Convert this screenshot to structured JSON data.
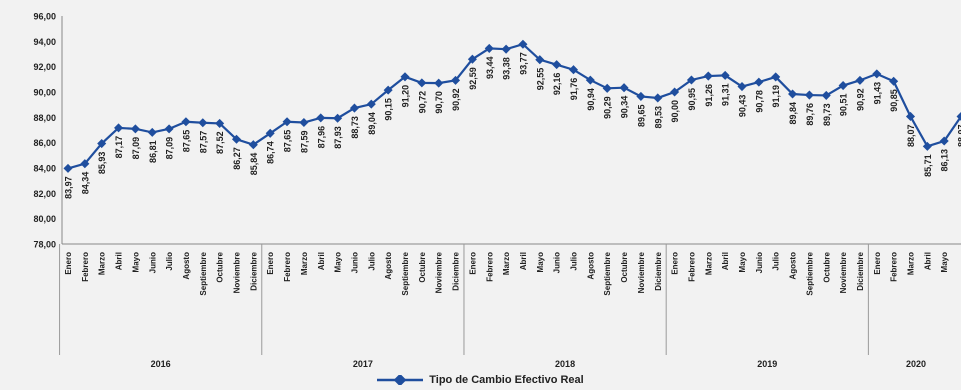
{
  "chart_data": {
    "type": "line",
    "title": "",
    "xlabel": "",
    "ylabel": "",
    "ylim": [
      78,
      96
    ],
    "yticks": [
      "78,00",
      "80,00",
      "82,00",
      "84,00",
      "86,00",
      "88,00",
      "90,00",
      "92,00",
      "94,00",
      "96,00"
    ],
    "grid": false,
    "legend_position": "bottom",
    "years": [
      {
        "label": "2016",
        "months": 12
      },
      {
        "label": "2017",
        "months": 12
      },
      {
        "label": "2018",
        "months": 12
      },
      {
        "label": "2019",
        "months": 12
      },
      {
        "label": "2020",
        "months": 5
      }
    ],
    "months": [
      "Enero",
      "Febrero",
      "Marzo",
      "Abril",
      "Mayo",
      "Junio",
      "Julio",
      "Agosto",
      "Septiembre",
      "Octubre",
      "Noviembre",
      "Diciembre"
    ],
    "series": [
      {
        "name": "Tipo de Cambio Efectivo Real",
        "color": "#1f4e9e",
        "values": [
          83.97,
          84.34,
          85.93,
          87.17,
          87.09,
          86.81,
          87.09,
          87.65,
          87.57,
          87.52,
          86.27,
          85.84,
          86.74,
          87.65,
          87.59,
          87.96,
          87.93,
          88.73,
          89.04,
          90.15,
          91.2,
          90.72,
          90.7,
          90.92,
          92.59,
          93.44,
          93.38,
          93.77,
          92.55,
          92.16,
          91.76,
          90.94,
          90.29,
          90.34,
          89.65,
          89.53,
          90.0,
          90.95,
          91.26,
          91.31,
          90.43,
          90.78,
          91.19,
          89.84,
          89.76,
          89.73,
          90.51,
          90.92,
          91.43,
          90.85,
          88.07,
          85.71,
          86.13
        ],
        "labels": [
          "83,97",
          "84,34",
          "85,93",
          "87,17",
          "87,09",
          "86,81",
          "87,09",
          "87,65",
          "87,57",
          "87,52",
          "86,27",
          "85,84",
          "86,74",
          "87,65",
          "87,59",
          "87,96",
          "87,93",
          "88,73",
          "89,04",
          "90,15",
          "91,20",
          "90,72",
          "90,70",
          "90,92",
          "92,59",
          "93,44",
          "93,38",
          "93,77",
          "92,55",
          "92,16",
          "91,76",
          "90,94",
          "90,29",
          "90,34",
          "89,65",
          "89,53",
          "90,00",
          "90,95",
          "91,26",
          "91,31",
          "90,43",
          "90,78",
          "91,19",
          "89,84",
          "89,76",
          "89,73",
          "90,51",
          "90,92",
          "91,43",
          "90,85",
          "88,07",
          "85,71",
          "86,13"
        ]
      }
    ],
    "extra_point": {
      "value": 88.07,
      "label": "88,07"
    }
  },
  "legend": {
    "label": "Tipo de Cambio Efectivo Real"
  }
}
